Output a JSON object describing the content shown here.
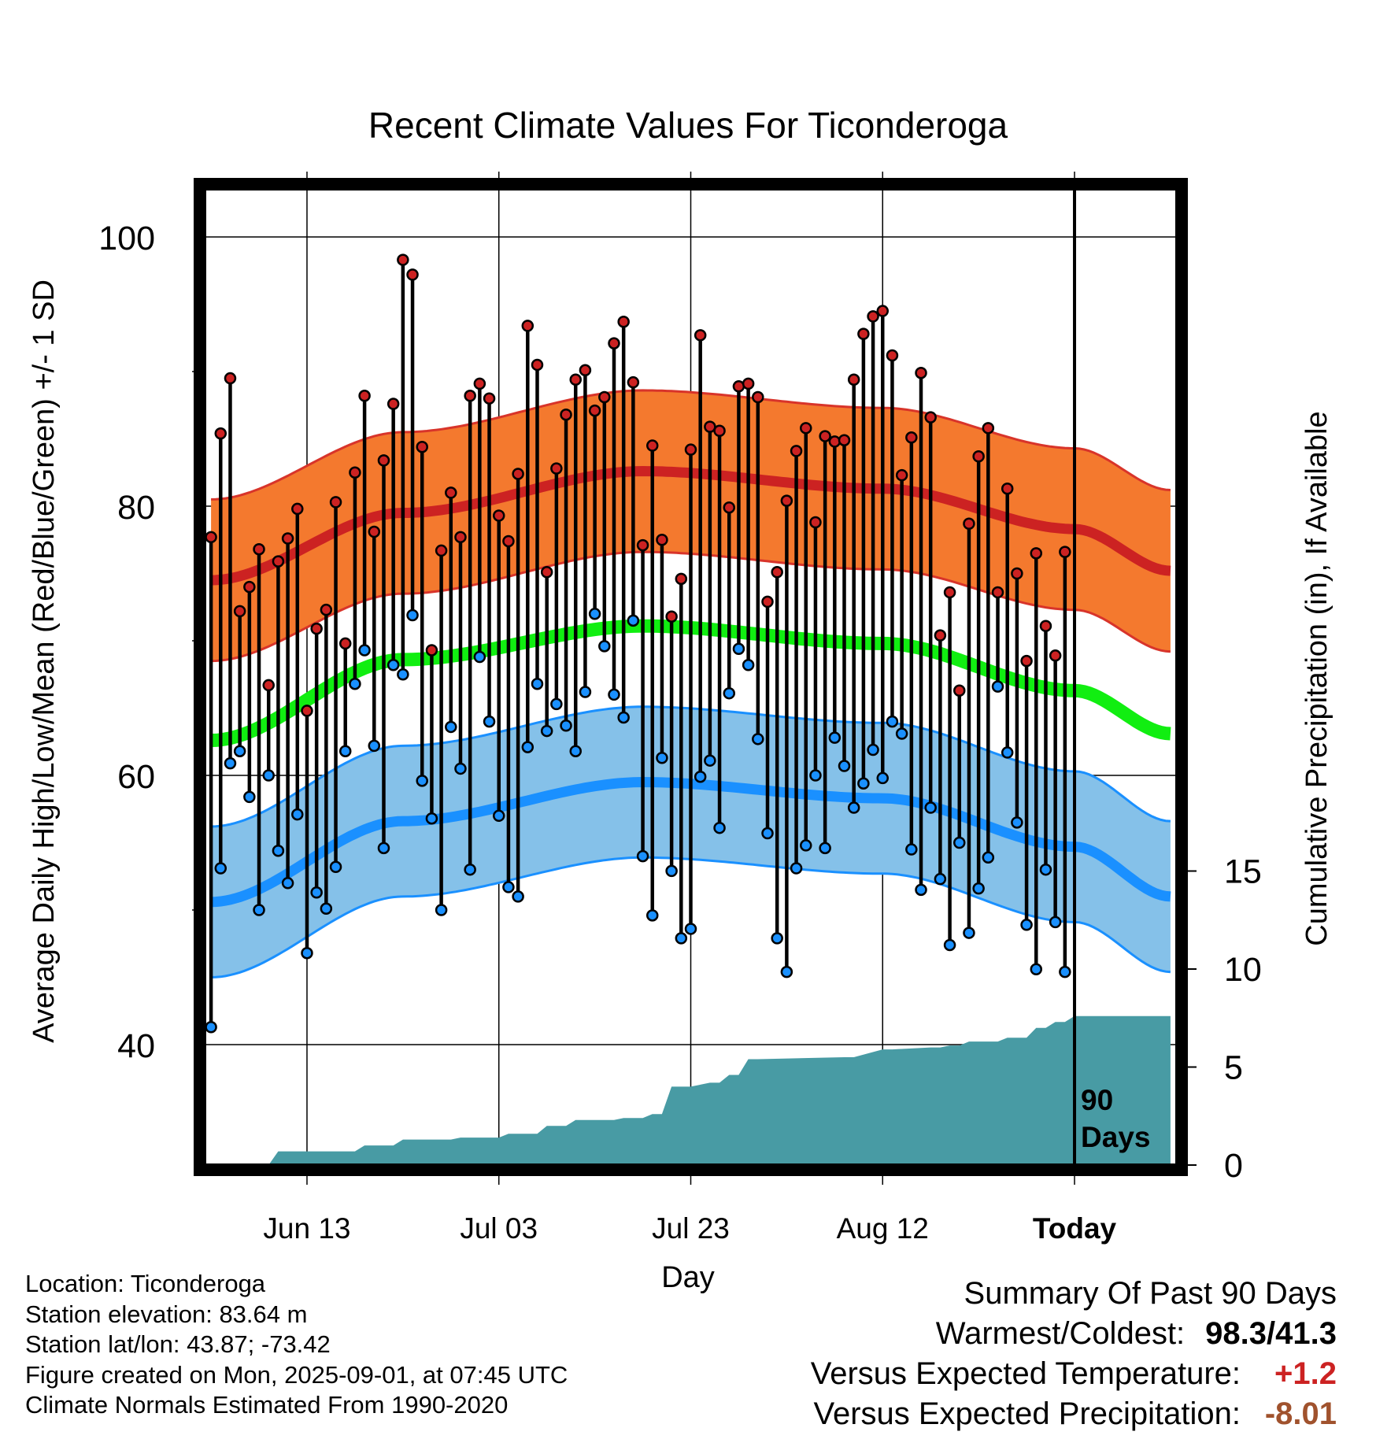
{
  "chart_data": {
    "type": "line",
    "title": "Recent Climate Values For Ticonderoga",
    "xlabel": "Day",
    "ylabel": "Average Daily High/Low/Mean (Red/Blue/Green) +/- 1 SD",
    "y2label": "Cumulative Precipitation (in), If Available",
    "x_tick_labels": [
      "Jun 13",
      "Jul 03",
      "Jul 23",
      "Aug 12",
      "Today"
    ],
    "x_tick_days": [
      10,
      30,
      50,
      70,
      90
    ],
    "xlim": [
      -0.5,
      100.5
    ],
    "ylim": [
      32,
      105
    ],
    "y_ticks": [
      40,
      60,
      80,
      100
    ],
    "y2lim": [
      0,
      90
    ],
    "y2_ticks": [
      0,
      5,
      10,
      15
    ],
    "today_label": "90\nDays",
    "grid": true,
    "normals": {
      "high_mean": {
        "x": [
          0,
          20,
          45,
          70,
          90,
          100
        ],
        "y": [
          74.5,
          79.5,
          82.6,
          81.3,
          78.3,
          75.2
        ],
        "color": "#cc2222"
      },
      "high_band": {
        "color": "#f4792e",
        "edge": "#d8342a"
      },
      "mean": {
        "x": [
          0,
          20,
          45,
          70,
          90,
          100
        ],
        "y": [
          62.6,
          68.6,
          71.1,
          69.8,
          66.3,
          63.1
        ],
        "color": "#11ee11"
      },
      "low_mean": {
        "x": [
          0,
          20,
          45,
          70,
          90,
          100
        ],
        "y": [
          50.6,
          56.6,
          59.5,
          58.3,
          54.7,
          51.0
        ],
        "color": "#1a90ff"
      },
      "low_band": {
        "color": "#85c1e9",
        "edge": "#1a90ff"
      },
      "sd_high": 6.0,
      "sd_low": 5.6
    },
    "series": [
      {
        "name": "High",
        "color": "#cc2222",
        "values": [
          77.7,
          85.4,
          89.5,
          72.2,
          74,
          76.8,
          66.7,
          75.9,
          77.6,
          79.8,
          64.8,
          70.9,
          72.3,
          80.3,
          69.8,
          82.5,
          88.2,
          78.1,
          83.4,
          87.6,
          98.3,
          97.2,
          84.4,
          69.3,
          76.7,
          81,
          77.7,
          88.2,
          89.1,
          88,
          79.3,
          77.4,
          82.4,
          93.4,
          90.5,
          75.1,
          82.8,
          86.8,
          89.4,
          90.1,
          87.1,
          88.1,
          92.1,
          93.7,
          89.2,
          77.1,
          84.5,
          77.5,
          71.8,
          74.6,
          84.2,
          92.7,
          85.9,
          85.6,
          79.9,
          88.9,
          89.1,
          88.1,
          72.9,
          75.1,
          80.4,
          84.1,
          85.8,
          78.8,
          85.2,
          84.8,
          84.9,
          89.4,
          92.8,
          94.1,
          94.5,
          91.2,
          82.3,
          85.1,
          89.9,
          86.6,
          70.4,
          73.6,
          66.3,
          78.7,
          83.7,
          85.8,
          73.6,
          81.3,
          75,
          68.5,
          76.5,
          71.1,
          68.9,
          76.6
        ]
      },
      {
        "name": "Low",
        "color": "#1a90ff",
        "values": [
          41.3,
          53.1,
          60.9,
          61.8,
          58.4,
          50,
          60,
          54.4,
          52,
          57.1,
          46.8,
          51.3,
          50.1,
          53.2,
          61.8,
          66.8,
          69.3,
          62.2,
          54.6,
          68.2,
          67.5,
          71.9,
          59.6,
          56.8,
          50,
          63.6,
          60.5,
          53.0,
          68.8,
          64,
          57,
          51.7,
          51,
          62.1,
          66.8,
          63.3,
          65.3,
          63.7,
          61.8,
          66.2,
          72,
          69.6,
          66,
          64.3,
          71.5,
          54,
          49.6,
          61.3,
          52.9,
          47.9,
          48.6,
          59.9,
          61.1,
          56.1,
          66.1,
          69.4,
          68.2,
          62.7,
          55.7,
          47.9,
          45.4,
          53.1,
          54.8,
          60,
          54.6,
          62.8,
          60.7,
          57.6,
          59.4,
          61.9,
          59.8,
          64,
          63.1,
          54.5,
          51.5,
          57.6,
          52.3,
          47.4,
          55,
          48.3,
          51.6,
          53.9,
          66.6,
          61.7,
          56.5,
          48.9,
          45.6,
          53,
          49.1,
          45.4
        ]
      },
      {
        "name": "Cumulative Precipitation",
        "color": "#489ba4",
        "days": [
          0,
          6,
          7,
          15,
          16,
          19,
          20,
          25,
          26,
          30,
          31,
          34,
          35,
          37,
          38,
          42,
          43,
          45,
          46,
          47,
          48,
          50,
          52,
          53,
          54,
          55,
          56,
          57,
          66,
          67,
          70,
          71,
          75,
          76,
          77,
          78,
          79,
          82,
          83,
          85,
          86,
          87,
          88,
          89,
          90,
          100
        ],
        "values": [
          0,
          0,
          0.7,
          0.7,
          1.0,
          1.0,
          1.3,
          1.3,
          1.4,
          1.4,
          1.6,
          1.6,
          2.0,
          2.0,
          2.3,
          2.3,
          2.4,
          2.4,
          2.6,
          2.6,
          4.0,
          4.0,
          4.2,
          4.2,
          4.6,
          4.6,
          5.4,
          5.4,
          5.5,
          5.5,
          5.9,
          5.9,
          6.0,
          6.0,
          6.1,
          6.1,
          6.3,
          6.3,
          6.5,
          6.5,
          7.0,
          7.0,
          7.3,
          7.3,
          7.6,
          7.6
        ]
      }
    ]
  },
  "footer": {
    "location": "Location: Ticonderoga",
    "elevation": "Station elevation: 83.64 m",
    "latlon": "Station lat/lon: 43.87; -73.42",
    "created": "Figure created on Mon, 2025-09-01, at 07:45 UTC",
    "normals": "Climate Normals Estimated From 1990-2020"
  },
  "summary": {
    "title": "Summary Of Past 90 Days",
    "warm_cold_label": "Warmest/Coldest:",
    "warm_cold_value": "98.3/41.3",
    "temp_label": "Versus Expected Temperature:",
    "temp_value": "+1.2",
    "temp_color": "#cc2222",
    "precip_label": "Versus Expected Precipitation:",
    "precip_value": "-8.01",
    "precip_color": "#a0522d"
  }
}
